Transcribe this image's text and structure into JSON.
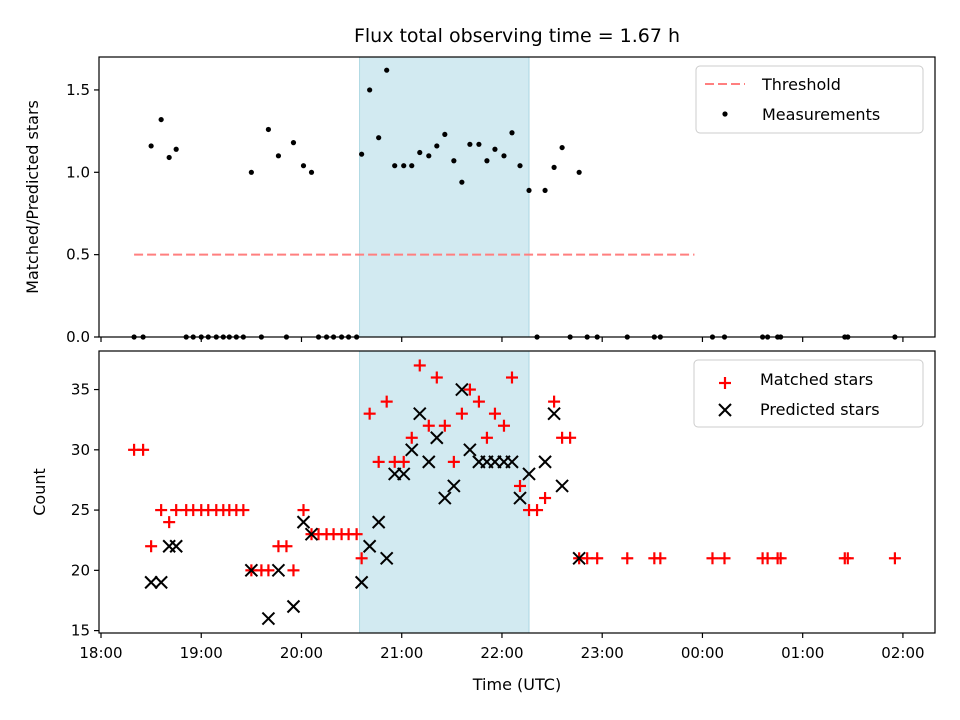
{
  "chart_data": [
    {
      "type": "scatter",
      "title": "Flux total observing time = 1.67 h",
      "xlabel": "",
      "ylabel": "Matched/Predicted stars",
      "ylim": [
        0,
        1.7
      ],
      "yticks": [
        "0.0",
        "0.5",
        "1.0",
        "1.5"
      ],
      "grid": false,
      "legend_position": "top-right",
      "shaded_interval_hours": [
        20.58,
        22.27
      ],
      "threshold": {
        "name": "Threshold",
        "value": 0.5,
        "x_range": [
          18.33,
          23.92
        ],
        "color": "#ff7f7f"
      },
      "series": [
        {
          "name": "Measurements",
          "color": "#000000",
          "points": [
            [
              18.33,
              0
            ],
            [
              18.42,
              0
            ],
            [
              18.5,
              1.16
            ],
            [
              18.6,
              1.32
            ],
            [
              18.68,
              1.09
            ],
            [
              18.75,
              1.14
            ],
            [
              18.85,
              0
            ],
            [
              18.92,
              0
            ],
            [
              19.0,
              0
            ],
            [
              19.07,
              0
            ],
            [
              19.15,
              0
            ],
            [
              19.22,
              0
            ],
            [
              19.28,
              0
            ],
            [
              19.35,
              0
            ],
            [
              19.42,
              0
            ],
            [
              19.5,
              1.0
            ],
            [
              19.6,
              0
            ],
            [
              19.67,
              1.26
            ],
            [
              19.77,
              1.1
            ],
            [
              19.85,
              0
            ],
            [
              19.92,
              1.18
            ],
            [
              20.02,
              1.04
            ],
            [
              20.1,
              1.0
            ],
            [
              20.17,
              0
            ],
            [
              20.25,
              0
            ],
            [
              20.32,
              0
            ],
            [
              20.4,
              0
            ],
            [
              20.47,
              0
            ],
            [
              20.55,
              0
            ],
            [
              20.6,
              1.11
            ],
            [
              20.68,
              1.5
            ],
            [
              20.77,
              1.21
            ],
            [
              20.85,
              1.62
            ],
            [
              20.93,
              1.04
            ],
            [
              21.02,
              1.04
            ],
            [
              21.1,
              1.04
            ],
            [
              21.18,
              1.12
            ],
            [
              21.27,
              1.1
            ],
            [
              21.35,
              1.16
            ],
            [
              21.43,
              1.23
            ],
            [
              21.52,
              1.07
            ],
            [
              21.6,
              0.94
            ],
            [
              21.68,
              1.17
            ],
            [
              21.77,
              1.17
            ],
            [
              21.85,
              1.07
            ],
            [
              21.93,
              1.14
            ],
            [
              22.02,
              1.1
            ],
            [
              22.1,
              1.24
            ],
            [
              22.18,
              1.04
            ],
            [
              22.27,
              0.89
            ],
            [
              22.35,
              0
            ],
            [
              22.43,
              0.89
            ],
            [
              22.52,
              1.03
            ],
            [
              22.6,
              1.15
            ],
            [
              22.68,
              0
            ],
            [
              22.77,
              1.0
            ],
            [
              22.85,
              0
            ],
            [
              22.95,
              0
            ],
            [
              23.25,
              0
            ],
            [
              23.52,
              0
            ],
            [
              23.58,
              0
            ],
            [
              24.1,
              0
            ],
            [
              24.22,
              0
            ],
            [
              24.6,
              0
            ],
            [
              24.65,
              0
            ],
            [
              24.75,
              0
            ],
            [
              24.78,
              0
            ],
            [
              25.42,
              0
            ],
            [
              25.45,
              0
            ],
            [
              25.92,
              0
            ]
          ]
        }
      ]
    },
    {
      "type": "scatter",
      "title": "",
      "xlabel": "Time (UTC)",
      "ylabel": "Count",
      "ylim": [
        14.8,
        38.2
      ],
      "xlim_hours": [
        17.98,
        26.32
      ],
      "yticks": [
        "15",
        "20",
        "25",
        "30",
        "35"
      ],
      "xticks": [
        "18:00",
        "19:00",
        "20:00",
        "21:00",
        "22:00",
        "23:00",
        "00:00",
        "01:00",
        "02:00"
      ],
      "grid": false,
      "legend_position": "top-right",
      "shaded_interval_hours": [
        20.58,
        22.27
      ],
      "series": [
        {
          "name": "Matched stars",
          "color": "#ff0000",
          "marker": "plus",
          "points": [
            [
              18.33,
              30
            ],
            [
              18.42,
              30
            ],
            [
              18.5,
              22
            ],
            [
              18.6,
              25
            ],
            [
              18.68,
              24
            ],
            [
              18.75,
              25
            ],
            [
              18.85,
              25
            ],
            [
              18.92,
              25
            ],
            [
              19.0,
              25
            ],
            [
              19.07,
              25
            ],
            [
              19.15,
              25
            ],
            [
              19.22,
              25
            ],
            [
              19.28,
              25
            ],
            [
              19.35,
              25
            ],
            [
              19.42,
              25
            ],
            [
              19.5,
              20
            ],
            [
              19.6,
              20
            ],
            [
              19.67,
              20
            ],
            [
              19.77,
              22
            ],
            [
              19.85,
              22
            ],
            [
              19.92,
              20
            ],
            [
              20.02,
              25
            ],
            [
              20.1,
              23
            ],
            [
              20.17,
              23
            ],
            [
              20.25,
              23
            ],
            [
              20.32,
              23
            ],
            [
              20.4,
              23
            ],
            [
              20.47,
              23
            ],
            [
              20.55,
              23
            ],
            [
              20.6,
              21
            ],
            [
              20.68,
              33
            ],
            [
              20.77,
              29
            ],
            [
              20.85,
              34
            ],
            [
              20.93,
              29
            ],
            [
              21.02,
              29
            ],
            [
              21.1,
              31
            ],
            [
              21.18,
              37
            ],
            [
              21.27,
              32
            ],
            [
              21.35,
              36
            ],
            [
              21.43,
              32
            ],
            [
              21.52,
              29
            ],
            [
              21.6,
              33
            ],
            [
              21.68,
              35
            ],
            [
              21.77,
              34
            ],
            [
              21.85,
              31
            ],
            [
              21.93,
              33
            ],
            [
              22.02,
              32
            ],
            [
              22.1,
              36
            ],
            [
              22.18,
              27
            ],
            [
              22.27,
              25
            ],
            [
              22.35,
              25
            ],
            [
              22.43,
              26
            ],
            [
              22.52,
              34
            ],
            [
              22.6,
              31
            ],
            [
              22.68,
              31
            ],
            [
              22.77,
              21
            ],
            [
              22.85,
              21
            ],
            [
              22.95,
              21
            ],
            [
              23.25,
              21
            ],
            [
              23.52,
              21
            ],
            [
              23.58,
              21
            ],
            [
              24.1,
              21
            ],
            [
              24.22,
              21
            ],
            [
              24.6,
              21
            ],
            [
              24.65,
              21
            ],
            [
              24.75,
              21
            ],
            [
              24.78,
              21
            ],
            [
              25.42,
              21
            ],
            [
              25.45,
              21
            ],
            [
              25.92,
              21
            ]
          ]
        },
        {
          "name": "Predicted stars",
          "color": "#000000",
          "marker": "x",
          "points": [
            [
              18.5,
              19
            ],
            [
              18.6,
              19
            ],
            [
              18.68,
              22
            ],
            [
              18.75,
              22
            ],
            [
              19.5,
              20
            ],
            [
              19.67,
              16
            ],
            [
              19.77,
              20
            ],
            [
              19.92,
              17
            ],
            [
              20.02,
              24
            ],
            [
              20.1,
              23
            ],
            [
              20.6,
              19
            ],
            [
              20.68,
              22
            ],
            [
              20.77,
              24
            ],
            [
              20.85,
              21
            ],
            [
              20.93,
              28
            ],
            [
              21.02,
              28
            ],
            [
              21.1,
              30
            ],
            [
              21.18,
              33
            ],
            [
              21.27,
              29
            ],
            [
              21.35,
              31
            ],
            [
              21.43,
              26
            ],
            [
              21.52,
              27
            ],
            [
              21.6,
              35
            ],
            [
              21.68,
              30
            ],
            [
              21.77,
              29
            ],
            [
              21.85,
              29
            ],
            [
              21.93,
              29
            ],
            [
              22.02,
              29
            ],
            [
              22.1,
              29
            ],
            [
              22.18,
              26
            ],
            [
              22.27,
              28
            ],
            [
              22.43,
              29
            ],
            [
              22.52,
              33
            ],
            [
              22.6,
              27
            ],
            [
              22.77,
              21
            ]
          ]
        }
      ]
    }
  ]
}
